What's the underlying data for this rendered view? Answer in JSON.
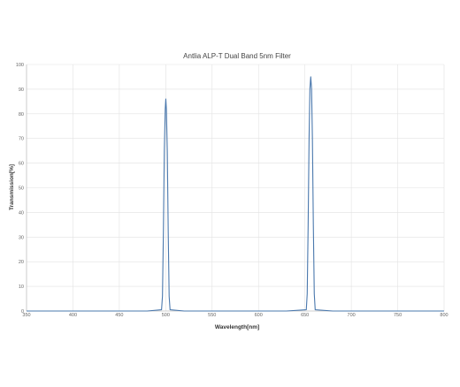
{
  "chart_data": {
    "type": "line",
    "title": "Antlia ALP-T Dual Band 5nm Filter",
    "xlabel": "Wavelength[nm]",
    "ylabel": "Transmission[%]",
    "xlim": [
      350,
      800
    ],
    "ylim": [
      0,
      100
    ],
    "xticks": [
      350,
      400,
      450,
      500,
      550,
      600,
      650,
      700,
      750,
      800
    ],
    "yticks": [
      0,
      10,
      20,
      30,
      40,
      50,
      60,
      70,
      80,
      90,
      100
    ],
    "grid": true,
    "legend": "none",
    "series": [
      {
        "color": "#4a78ad",
        "x": [
          350,
          480,
          495.5,
          496.5,
          497.5,
          498.5,
          499.5,
          500.1,
          500.7,
          501.7,
          502.7,
          503.7,
          504.7,
          520,
          630,
          651.5,
          652.5,
          653.5,
          654.5,
          655.4,
          656.3,
          657.2,
          658.1,
          659.1,
          660.1,
          661.1,
          680,
          800
        ],
        "y": [
          0,
          0,
          0.5,
          6,
          32,
          65,
          82,
          86,
          82,
          65,
          32,
          6,
          0.5,
          0,
          0,
          0.5,
          7,
          35,
          70,
          90,
          95,
          90,
          70,
          35,
          7,
          0.5,
          0,
          0
        ]
      }
    ]
  }
}
